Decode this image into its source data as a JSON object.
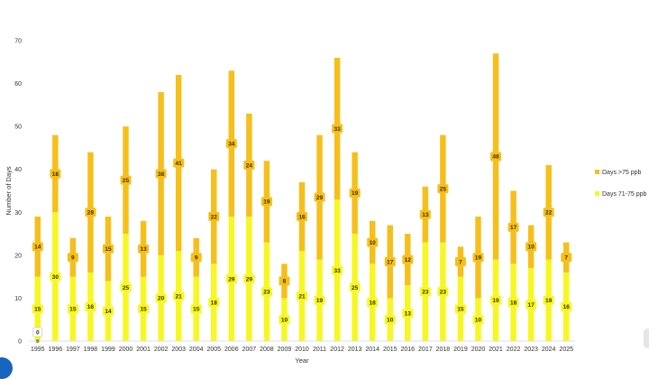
{
  "chart_data": {
    "type": "bar",
    "stacked": true,
    "title": "",
    "xlabel": "Year",
    "ylabel": "Number of Days",
    "ylim": [
      0,
      70
    ],
    "yticks": [
      0,
      10,
      20,
      30,
      40,
      50,
      60,
      70
    ],
    "grid": false,
    "legend_position": "right",
    "categories": [
      "1995",
      "1996",
      "1997",
      "1998",
      "1999",
      "2000",
      "2001",
      "2002",
      "2003",
      "2004",
      "2005",
      "2006",
      "2007",
      "2008",
      "2009",
      "2010",
      "2011",
      "2012",
      "2013",
      "2014",
      "2015",
      "2016",
      "2017",
      "2018",
      "2019",
      "2020",
      "2021",
      "2022",
      "2023",
      "2024",
      "2025"
    ],
    "series": [
      {
        "name": "Days 71-75 ppb",
        "color": "#f7f721",
        "values": [
          15,
          30,
          15,
          16,
          14,
          25,
          15,
          20,
          21,
          15,
          18,
          29,
          29,
          23,
          10,
          21,
          19,
          33,
          25,
          18,
          10,
          13,
          23,
          23,
          15,
          10,
          19,
          18,
          17,
          19,
          16
        ]
      },
      {
        "name": "Days >75 ppb",
        "color": "#f6bf1a",
        "values": [
          14,
          18,
          9,
          28,
          15,
          25,
          13,
          38,
          41,
          9,
          22,
          34,
          24,
          19,
          8,
          16,
          29,
          33,
          19,
          10,
          17,
          12,
          13,
          25,
          7,
          19,
          48,
          17,
          10,
          22,
          7
        ]
      }
    ],
    "annotations": [
      {
        "category": "1995",
        "text": "0"
      }
    ]
  }
}
